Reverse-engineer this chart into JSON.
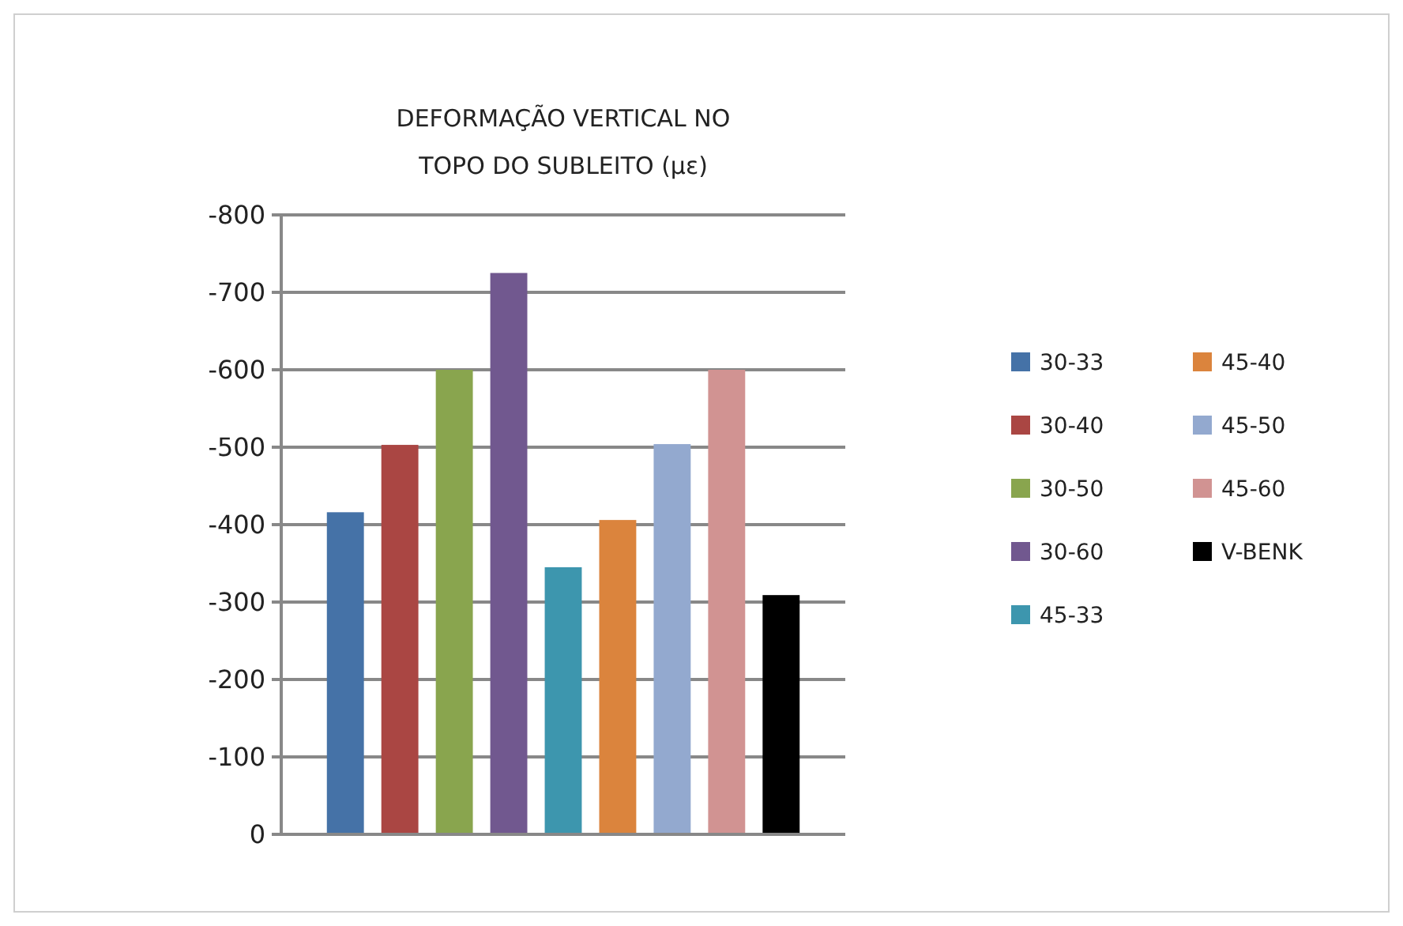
{
  "chart_data": {
    "type": "bar",
    "title": "DEFORMAÇÃO VERTICAL NO TOPO DO SUBLEITO (με)",
    "categories": [
      null
    ],
    "series": [
      {
        "name": "30-33",
        "color": "#4572a7",
        "values": [
          -416
        ]
      },
      {
        "name": "30-40",
        "color": "#aa4643",
        "values": [
          -503
        ]
      },
      {
        "name": "30-50",
        "color": "#89a54e",
        "values": [
          -600
        ]
      },
      {
        "name": "30-60",
        "color": "#71588f",
        "values": [
          -725
        ]
      },
      {
        "name": "45-33",
        "color": "#3d96ae",
        "values": [
          -345
        ]
      },
      {
        "name": "45-40",
        "color": "#db843d",
        "values": [
          -406
        ]
      },
      {
        "name": "45-50",
        "color": "#93a9cf",
        "values": [
          -504
        ]
      },
      {
        "name": "45-60",
        "color": "#d19392",
        "values": [
          -600
        ]
      },
      {
        "name": "V-BENK",
        "color": "#000000",
        "values": [
          -309
        ]
      }
    ],
    "ylim": [
      0,
      -800
    ],
    "yticks": [
      0,
      -100,
      -200,
      -300,
      -400,
      -500,
      -600,
      -700,
      -800
    ],
    "grid": "y",
    "legend": "right"
  }
}
